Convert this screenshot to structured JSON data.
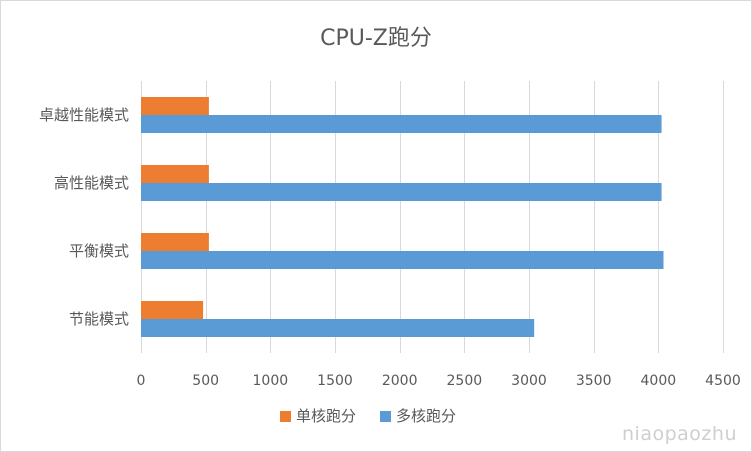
{
  "chart_data": {
    "type": "bar",
    "orientation": "horizontal",
    "title": "CPU-Z跑分",
    "categories": [
      "卓越性能模式",
      "高性能模式",
      "平衡模式",
      "节能模式"
    ],
    "series": [
      {
        "name": "单核跑分",
        "color": "#ed7d31",
        "values": [
          525,
          525,
          525,
          480
        ]
      },
      {
        "name": "多核跑分",
        "color": "#5b9bd5",
        "values": [
          4025,
          4025,
          4040,
          3040
        ]
      }
    ],
    "xlim": [
      0,
      4500
    ],
    "xticks": [
      0,
      500,
      1000,
      1500,
      2000,
      2500,
      3000,
      3500,
      4000,
      4500
    ],
    "grid": true,
    "legend_position": "bottom"
  },
  "watermark": "niaopaozhu"
}
